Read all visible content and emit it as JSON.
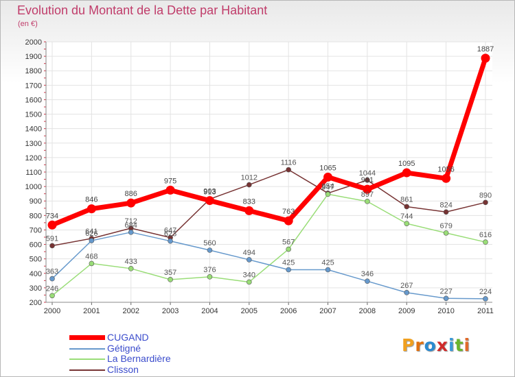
{
  "title": "Evolution du Montant de la Dette par Habitant",
  "subtitle": "(en €)",
  "brand": {
    "text": "Proxiti",
    "colors": [
      "#f0a020",
      "#e07010",
      "#2a8ad0",
      "#d02a2a",
      "#3a9ad8",
      "#69b52c",
      "#e06a2a"
    ]
  },
  "chart_data": {
    "type": "line",
    "x": [
      2000,
      2001,
      2002,
      2003,
      2004,
      2005,
      2006,
      2007,
      2008,
      2009,
      2010,
      2011
    ],
    "ylim": [
      200,
      2000
    ],
    "yticks": [
      200,
      300,
      400,
      500,
      600,
      700,
      800,
      900,
      1000,
      1100,
      1200,
      1300,
      1400,
      1500,
      1600,
      1700,
      1800,
      1900,
      2000
    ],
    "grid": true,
    "legend_position": "bottom-left",
    "series": [
      {
        "name": "CUGAND",
        "color": "#ff0000",
        "label_color": "#444444",
        "width": 7,
        "marker": 6.5,
        "values": [
          734,
          846,
          886,
          975,
          903,
          833,
          763,
          1065,
          981,
          1095,
          1056,
          1887
        ]
      },
      {
        "name": "Gétigné",
        "color": "#6699cc",
        "label_color": "#555555",
        "width": 1.5,
        "marker": 3.5,
        "values": [
          363,
          626,
          684,
          623,
          560,
          494,
          425,
          425,
          346,
          267,
          227,
          224
        ]
      },
      {
        "name": "La Bernardière",
        "color": "#99dd77",
        "label_color": "#555555",
        "width": 1.5,
        "marker": 3.5,
        "values": [
          246,
          468,
          433,
          357,
          376,
          340,
          567,
          947,
          897,
          744,
          679,
          616
        ]
      },
      {
        "name": "Clisson",
        "color": "#773333",
        "label_color": "#555555",
        "width": 1.5,
        "marker": 3.5,
        "values": [
          591,
          641,
          712,
          647,
          913,
          1012,
          1116,
          954,
          1044,
          861,
          824,
          890
        ]
      }
    ]
  }
}
